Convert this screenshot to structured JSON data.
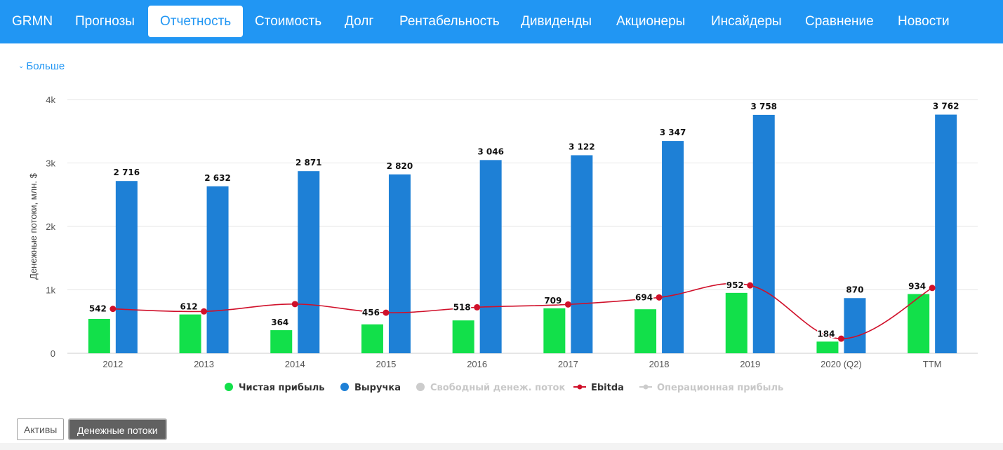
{
  "nav": {
    "ticker": "GRMN",
    "tabs": [
      "Прогнозы",
      "Отчетность",
      "Стоимость",
      "Долг",
      "Рентабельность",
      "Дивиденды",
      "Акционеры",
      "Инсайдеры",
      "Сравнение",
      "Новости"
    ],
    "active_tab": "Отчетность"
  },
  "more_link": "Больше",
  "toggles": {
    "assets": "Активы",
    "cash_flows": "Денежные потоки",
    "active": "Денежные потоки"
  },
  "colors": {
    "nav": "#2196f3",
    "net_income": "#12e04a",
    "revenue": "#1e80d6",
    "ebitda": "#d0102a",
    "inactive": "#cccccc"
  },
  "chart_data": {
    "type": "bar",
    "title": "",
    "xlabel": "",
    "ylabel": "Денежные потоки, млн. $",
    "categories": [
      "2012",
      "2013",
      "2014",
      "2015",
      "2016",
      "2017",
      "2018",
      "2019",
      "2020 (Q2)",
      "TTM"
    ],
    "ylim": [
      0,
      4000
    ],
    "yticks": [
      0,
      1000,
      2000,
      3000,
      4000
    ],
    "ytick_labels": [
      "0",
      "1k",
      "2k",
      "3k",
      "4k"
    ],
    "grid": true,
    "legend_position": "bottom",
    "series": [
      {
        "name": "Чистая прибыль",
        "type": "bar",
        "color": "#12e04a",
        "values": [
          542,
          612,
          364,
          456,
          518,
          709,
          694,
          952,
          184,
          934
        ],
        "labels": [
          "542",
          "612",
          "364",
          "456",
          "518",
          "709",
          "694",
          "952",
          "184",
          "934"
        ]
      },
      {
        "name": "Выручка",
        "type": "bar",
        "color": "#1e80d6",
        "values": [
          2716,
          2632,
          2871,
          2820,
          3046,
          3122,
          3347,
          3758,
          870,
          3762
        ],
        "labels": [
          "2 716",
          "2 632",
          "2 871",
          "2 820",
          "3 046",
          "3 122",
          "3 347",
          "3 758",
          "870",
          "3 762"
        ]
      },
      {
        "name": "Свободный денеж. поток",
        "type": "bar",
        "visible": false,
        "color": "#cccccc"
      },
      {
        "name": "Ebitda",
        "type": "line",
        "color": "#d0102a",
        "values": [
          700,
          660,
          775,
          640,
          725,
          770,
          880,
          1070,
          230,
          1030
        ]
      },
      {
        "name": "Операционная прибыль",
        "type": "line",
        "visible": false,
        "color": "#cccccc"
      }
    ]
  }
}
